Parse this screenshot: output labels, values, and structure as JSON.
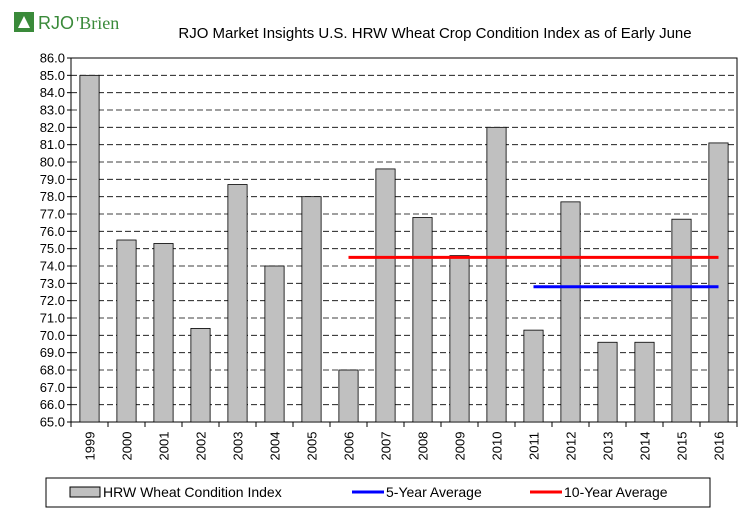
{
  "brand": {
    "logo_part1": "RJO",
    "logo_part2": "'Brien",
    "logo_color": "#3a8a3a"
  },
  "chart_data": {
    "type": "bar",
    "title": "RJO Market Insights U.S. HRW Wheat Crop Condition Index as of Early June",
    "xlabel": "",
    "ylabel": "",
    "ylim": [
      65.0,
      86.0
    ],
    "ytick_step": 1.0,
    "grid": true,
    "categories": [
      "1999",
      "2000",
      "2001",
      "2002",
      "2003",
      "2004",
      "2005",
      "2006",
      "2007",
      "2008",
      "2009",
      "2010",
      "2011",
      "2012",
      "2013",
      "2014",
      "2015",
      "2016"
    ],
    "series": [
      {
        "name": "HRW Wheat Condition Index",
        "type": "bar",
        "color": "#c0c0c0",
        "values": [
          85.0,
          75.5,
          75.3,
          70.4,
          78.7,
          74.0,
          78.0,
          68.0,
          79.6,
          76.8,
          74.6,
          82.0,
          70.3,
          77.7,
          69.6,
          69.6,
          76.7,
          81.1
        ]
      },
      {
        "name": "5-Year Average",
        "type": "line",
        "color": "#0000ff",
        "from": "2011",
        "to": "2016",
        "value": 72.8
      },
      {
        "name": "10-Year Average",
        "type": "line",
        "color": "#ff0000",
        "from": "2006",
        "to": "2016",
        "value": 74.5
      }
    ],
    "legend_position": "bottom"
  }
}
